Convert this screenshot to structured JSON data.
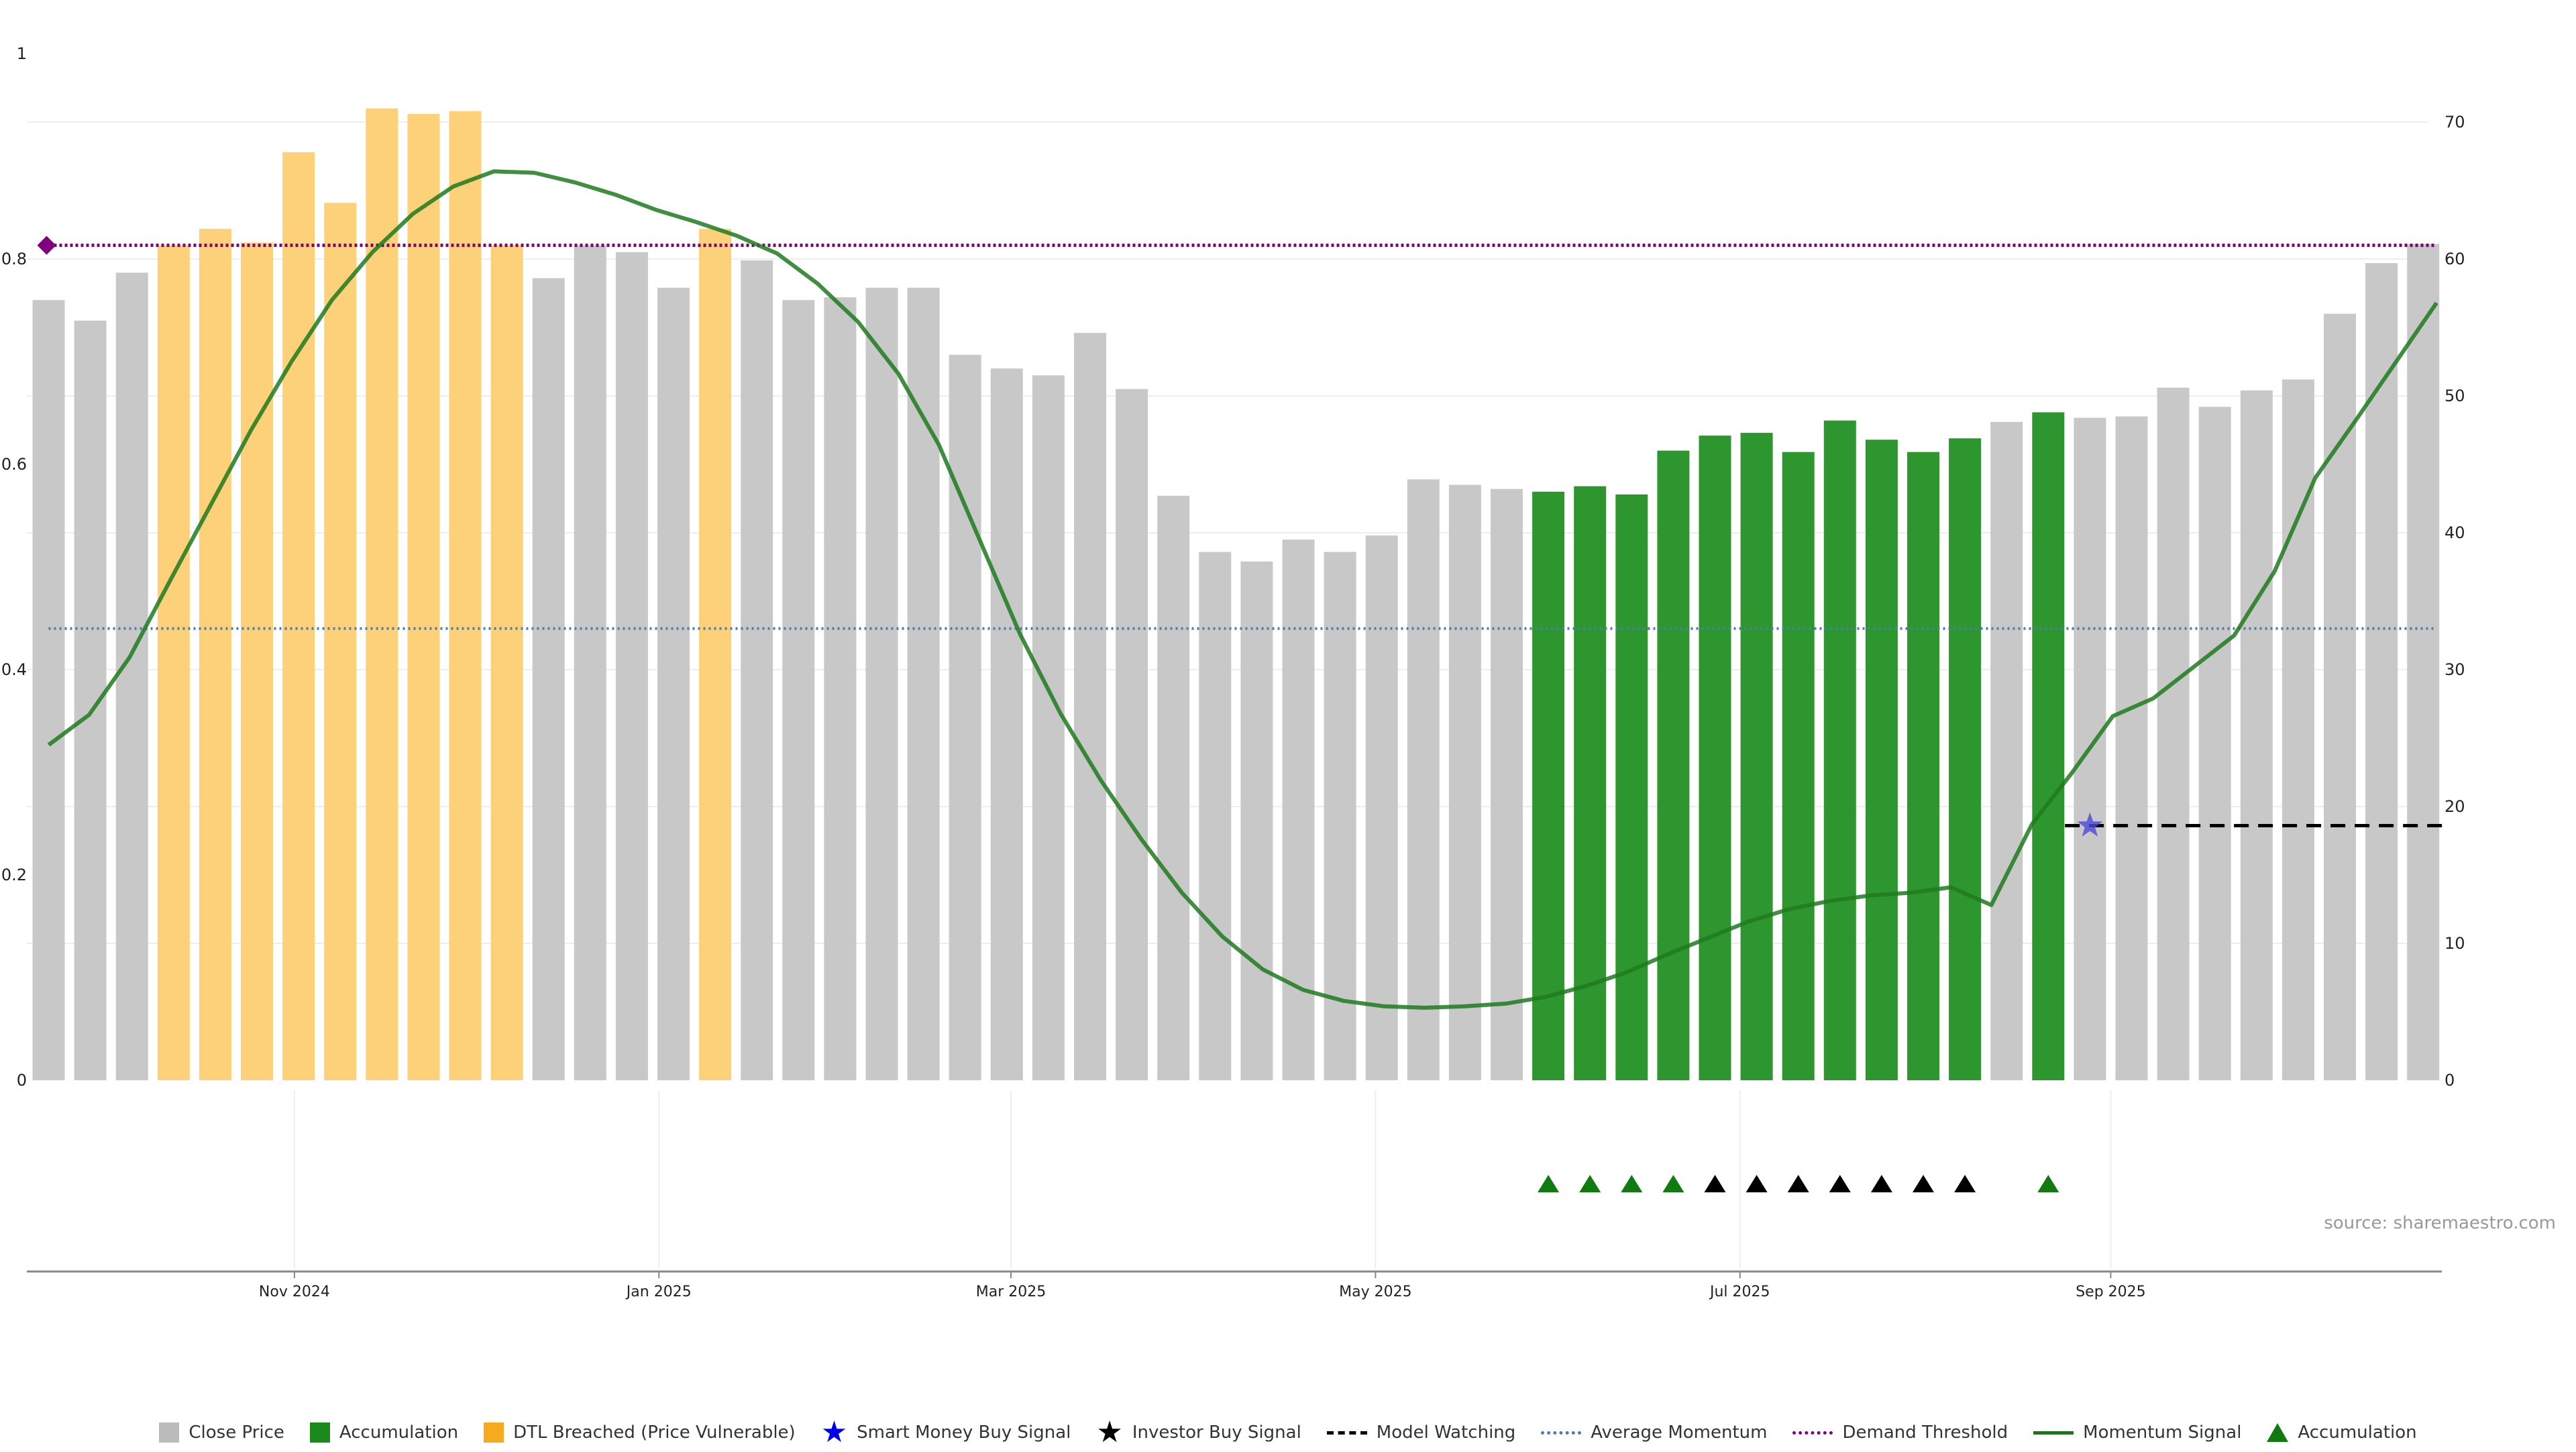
{
  "source_text": "source: sharemaestro.com",
  "legend": [
    {
      "label": "Close Price",
      "kind": "square",
      "color": "#bbbbbb",
      "icon": "close-price-swatch"
    },
    {
      "label": "Accumulation",
      "kind": "square",
      "color": "#1a8a1a",
      "icon": "accumulation-swatch"
    },
    {
      "label": "DTL Breached (Price Vulnerable)",
      "kind": "square",
      "color": "#f5ab1d",
      "icon": "dtl-breached-swatch"
    },
    {
      "label": "Smart Money Buy Signal",
      "kind": "star",
      "color": "#0000ee",
      "icon": "blue-star-icon"
    },
    {
      "label": "Investor Buy Signal",
      "kind": "star",
      "color": "#000000",
      "icon": "black-star-icon"
    },
    {
      "label": "Model Watching",
      "kind": "dash",
      "color": "#000000",
      "icon": "dashed-line-icon"
    },
    {
      "label": "Average Momentum",
      "kind": "dotted",
      "color": "#4d7ea8",
      "icon": "dotted-line-icon"
    },
    {
      "label": "Demand Threshold",
      "kind": "dotted",
      "color": "#800080",
      "icon": "dotted-line-icon"
    },
    {
      "label": "Momentum Signal",
      "kind": "solid",
      "color": "#117a11",
      "icon": "solid-line-icon"
    },
    {
      "label": "Accumulation",
      "kind": "triangle",
      "color": "#117a11",
      "icon": "green-triangle-icon"
    }
  ],
  "chart_data": {
    "type": "bar",
    "left_axis": {
      "ylim": [
        0,
        1
      ],
      "ticks": [
        "0",
        "0.2",
        "0.4",
        "0.6",
        "0.8",
        "1"
      ]
    },
    "right_axis": {
      "ylim": [
        0,
        75
      ],
      "ticks": [
        "0",
        "10",
        "20",
        "30",
        "40",
        "50",
        "60",
        "70"
      ]
    },
    "x_tick_labels": [
      "Nov 2024",
      "Jan 2025",
      "Mar 2025",
      "May 2025",
      "Jul 2025",
      "Sep 2025"
    ],
    "x_tick_bar_positions": [
      5.9,
      14.65,
      23.1,
      31.85,
      40.6,
      49.5
    ],
    "colors": {
      "close": "#c8c8c8",
      "accumulation": "#2e962e",
      "dtl": "#fdd07a",
      "momentum": "#1e7a1e",
      "avg_momentum": "#4d7ea8",
      "demand": "#800080",
      "model_watch": "#000000",
      "smart_star": "#4a4ad8",
      "grid": "#eeeeee"
    },
    "series": [
      {
        "name": "Close Price",
        "values": [
          57,
          55.5,
          59,
          61,
          62.2,
          61.2,
          67.8,
          64.1,
          71,
          70.6,
          70.8,
          61,
          58.6,
          61,
          60.5,
          57.9,
          62.2,
          59.9,
          57,
          57.2,
          57.9,
          57.9,
          53,
          52,
          51.5,
          54.6,
          50.5,
          42.7,
          38.6,
          37.9,
          39.5,
          38.6,
          39.8,
          43.9,
          43.5,
          43.2,
          43,
          43.4,
          42.8,
          46,
          47.1,
          47.3,
          45.9,
          48.2,
          46.8,
          45.9,
          46.9,
          48.1,
          48.8,
          48.4,
          48.5,
          50.6,
          49.2,
          50.4,
          51.2,
          56,
          59.7,
          61.1
        ]
      },
      {
        "name": "Momentum Signal",
        "values": [
          24.5,
          26.7,
          30.9,
          36.5,
          42,
          47.5,
          52.5,
          57,
          60.5,
          63.3,
          65.3,
          66.4,
          66.3,
          65.6,
          64.7,
          63.6,
          62.7,
          61.7,
          60.4,
          58.2,
          55.4,
          51.6,
          46.4,
          39.5,
          32.6,
          26.8,
          21.9,
          17.6,
          13.7,
          10.5,
          8.1,
          6.6,
          5.8,
          5.4,
          5.3,
          5.4,
          5.6,
          6.1,
          6.9,
          7.9,
          9.2,
          10.4,
          11.6,
          12.5,
          13.1,
          13.5,
          13.7,
          14.1,
          12.8,
          18.7,
          22.5,
          26.6,
          27.9,
          30.2,
          32.5,
          37.2,
          44,
          48.2,
          52.5,
          56.8
        ]
      }
    ],
    "bar_colors": [
      "close",
      "close",
      "close",
      "dtl",
      "dtl",
      "dtl",
      "dtl",
      "dtl",
      "dtl",
      "dtl",
      "dtl",
      "dtl",
      "close",
      "close",
      "close",
      "close",
      "dtl",
      "close",
      "close",
      "close",
      "close",
      "close",
      "close",
      "close",
      "close",
      "close",
      "close",
      "close",
      "close",
      "close",
      "close",
      "close",
      "close",
      "close",
      "close",
      "close",
      "accumulation",
      "accumulation",
      "accumulation",
      "accumulation",
      "accumulation",
      "accumulation",
      "accumulation",
      "accumulation",
      "accumulation",
      "accumulation",
      "accumulation",
      "close",
      "accumulation",
      "close",
      "close",
      "close",
      "close",
      "close",
      "close",
      "close",
      "close",
      "close"
    ],
    "demand_threshold": 61,
    "average_momentum": 33,
    "model_watching": {
      "level": 18.6,
      "from": 48.4,
      "to": 57.3
    },
    "smart_money_buy_signal": {
      "index": 49,
      "value": 18.6
    },
    "demand_marker_index": 0,
    "accumulation_triangles": [
      36,
      37,
      38,
      39,
      48
    ],
    "investor_buy_triangles": [
      40,
      41,
      42,
      43,
      44,
      45,
      46
    ]
  }
}
